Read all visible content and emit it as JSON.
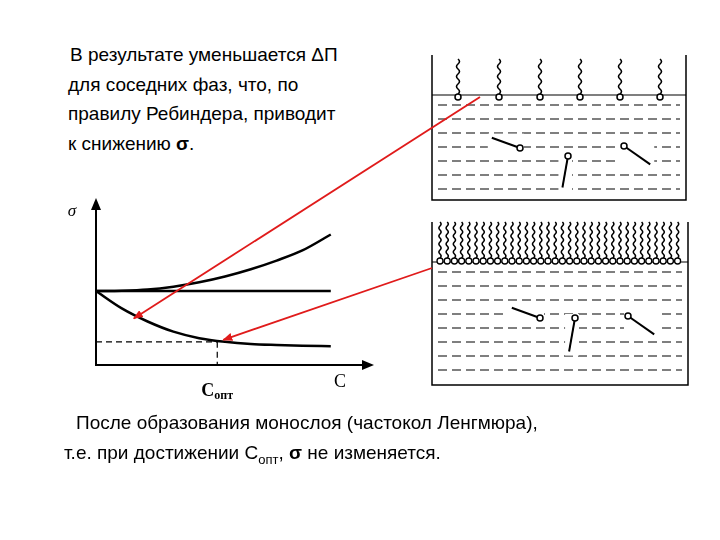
{
  "slide": {
    "text_top": [
      [
        {
          "text": "В результате уменьшается ΔП"
        }
      ],
      [
        {
          "text": "для соседних фаз, что, по"
        }
      ],
      [
        {
          "text": "правилу Ребиндера, приводит"
        }
      ],
      [
        {
          "text": "к снижению "
        },
        {
          "text": "σ",
          "bold": true
        },
        {
          "text": "."
        }
      ]
    ],
    "text_bottom": [
      [
        {
          "text": "После образования монослоя (частокол Ленгмюра),"
        }
      ],
      [
        {
          "text": "т.е. при достижении C"
        },
        {
          "text": "опт",
          "sub": true
        },
        {
          "text": ", "
        },
        {
          "text": "σ",
          "bold": true
        },
        {
          "text": " не изменяется."
        }
      ]
    ]
  },
  "chart_data": {
    "type": "line",
    "x_label": "C",
    "y_label": "σ",
    "x": [
      0,
      1,
      2,
      3,
      4,
      5,
      6,
      7,
      8,
      9.1
    ],
    "series": [
      {
        "color": "#000000",
        "values": [
          5.1,
          5.12,
          5.2,
          5.4,
          5.7,
          6.1,
          6.6,
          7.2,
          7.9,
          9.0
        ]
      },
      {
        "color": "#000000",
        "values": [
          5.1,
          5.1,
          5.1,
          5.1,
          5.1,
          5.1,
          5.1,
          5.1,
          5.1,
          5.1
        ]
      },
      {
        "color": "#000000",
        "values": [
          5.1,
          3.9,
          3.0,
          2.3,
          1.85,
          1.6,
          1.45,
          1.38,
          1.33,
          1.3
        ]
      }
    ],
    "xlim": [
      0,
      10
    ],
    "ylim": [
      0,
      10
    ],
    "tick_labels": false,
    "grid": false,
    "annotations": [
      {
        "x": 4.7,
        "y": 1.6,
        "label": "C",
        "subscript": "опт",
        "line_style": "dashed"
      }
    ]
  }
}
